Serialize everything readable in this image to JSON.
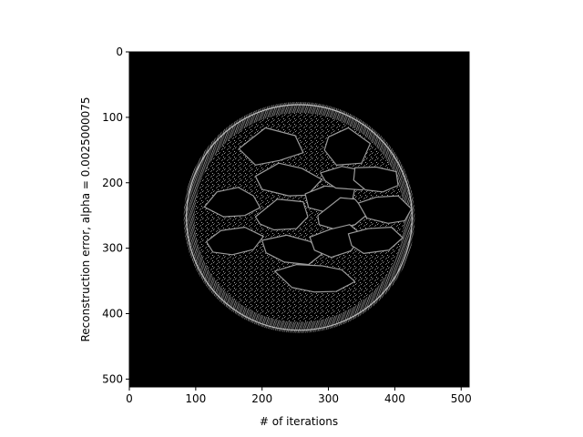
{
  "chart_data": {
    "type": "heatmap",
    "title": "",
    "xlabel": "# of iterations",
    "ylabel": "Reconstruction error, alpha = 0.0025000075",
    "xlim": [
      0,
      512
    ],
    "ylim": [
      512,
      0
    ],
    "x_ticks": [
      0,
      100,
      200,
      300,
      400,
      500
    ],
    "y_ticks": [
      0,
      100,
      200,
      300,
      400,
      500
    ],
    "image": {
      "colormap": "gray",
      "background_value": 0,
      "content": "reconstruction-error-map",
      "outer_ring": {
        "center": [
          256,
          253
        ],
        "radius": 170
      },
      "holes": [
        [
          [
            165,
            148
          ],
          [
            205,
            116
          ],
          [
            250,
            128
          ],
          [
            262,
            154
          ],
          [
            226,
            166
          ],
          [
            190,
            173
          ]
        ],
        [
          [
            300,
            130
          ],
          [
            330,
            116
          ],
          [
            363,
            140
          ],
          [
            350,
            170
          ],
          [
            312,
            173
          ],
          [
            294,
            150
          ]
        ],
        [
          [
            190,
            190
          ],
          [
            225,
            170
          ],
          [
            260,
            178
          ],
          [
            290,
            195
          ],
          [
            268,
            219
          ],
          [
            240,
            220
          ],
          [
            200,
            210
          ]
        ],
        [
          [
            265,
            217
          ],
          [
            295,
            205
          ],
          [
            340,
            208
          ],
          [
            335,
            232
          ],
          [
            300,
            246
          ],
          [
            270,
            238
          ]
        ],
        [
          [
            288,
            185
          ],
          [
            320,
            175
          ],
          [
            357,
            182
          ],
          [
            375,
            199
          ],
          [
            350,
            211
          ],
          [
            311,
            208
          ],
          [
            295,
            197
          ]
        ],
        [
          [
            340,
            177
          ],
          [
            372,
            176
          ],
          [
            402,
            183
          ],
          [
            405,
            204
          ],
          [
            382,
            214
          ],
          [
            356,
            211
          ],
          [
            338,
            196
          ]
        ],
        [
          [
            113,
            237
          ],
          [
            132,
            214
          ],
          [
            164,
            207
          ],
          [
            187,
            220
          ],
          [
            197,
            238
          ],
          [
            174,
            250
          ],
          [
            142,
            252
          ]
        ],
        [
          [
            190,
            252
          ],
          [
            223,
            225
          ],
          [
            262,
            229
          ],
          [
            269,
            252
          ],
          [
            252,
            270
          ],
          [
            218,
            272
          ],
          [
            197,
            263
          ]
        ],
        [
          [
            284,
            250
          ],
          [
            318,
            223
          ],
          [
            340,
            225
          ],
          [
            359,
            248
          ],
          [
            340,
            264
          ],
          [
            310,
            271
          ],
          [
            286,
            264
          ]
        ],
        [
          [
            345,
            231
          ],
          [
            372,
            222
          ],
          [
            405,
            220
          ],
          [
            425,
            240
          ],
          [
            415,
            258
          ],
          [
            390,
            262
          ],
          [
            358,
            254
          ]
        ],
        [
          [
            116,
            290
          ],
          [
            138,
            273
          ],
          [
            174,
            268
          ],
          [
            202,
            282
          ],
          [
            187,
            302
          ],
          [
            155,
            310
          ],
          [
            126,
            306
          ]
        ],
        [
          [
            200,
            288
          ],
          [
            237,
            280
          ],
          [
            273,
            290
          ],
          [
            290,
            309
          ],
          [
            270,
            325
          ],
          [
            233,
            321
          ],
          [
            206,
            307
          ]
        ],
        [
          [
            272,
            283
          ],
          [
            303,
            271
          ],
          [
            332,
            264
          ],
          [
            351,
            280
          ],
          [
            334,
            304
          ],
          [
            304,
            314
          ],
          [
            279,
            303
          ]
        ],
        [
          [
            330,
            278
          ],
          [
            360,
            270
          ],
          [
            395,
            268
          ],
          [
            412,
            284
          ],
          [
            391,
            303
          ],
          [
            353,
            308
          ],
          [
            335,
            296
          ]
        ],
        [
          [
            219,
            335
          ],
          [
            252,
            325
          ],
          [
            291,
            327
          ],
          [
            320,
            333
          ],
          [
            340,
            351
          ],
          [
            312,
            366
          ],
          [
            279,
            367
          ],
          [
            245,
            360
          ]
        ]
      ]
    }
  }
}
